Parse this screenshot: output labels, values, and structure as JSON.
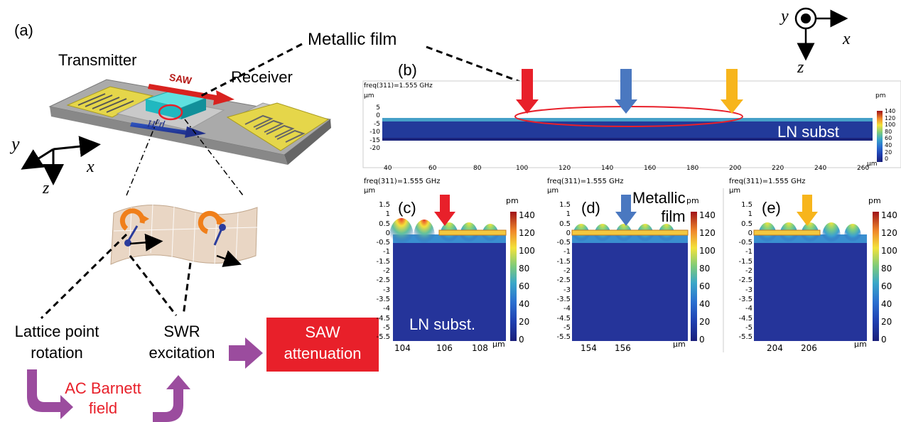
{
  "panel_a": {
    "label": "(a)",
    "transmitter": "Transmitter",
    "receiver": "Receiver",
    "saw_label": "SAW",
    "field_label": "μ₀H",
    "axis_y": "y",
    "axis_x": "x",
    "axis_z": "z"
  },
  "metallic_film_top": "Metallic film",
  "top_axes": {
    "y": "y",
    "x": "x",
    "z": "z"
  },
  "panel_b": {
    "label": "(b)",
    "freq": "freq(311)=1.555 GHz",
    "unit_axis": "μm",
    "unit_color": "pm",
    "y_ticks": [
      "5",
      "0",
      "-5",
      "-10",
      "-15",
      "-20"
    ],
    "x_ticks": [
      "40",
      "60",
      "80",
      "100",
      "120",
      "140",
      "160",
      "180",
      "200",
      "220",
      "240",
      "260"
    ],
    "x_unit": "μm",
    "colorbar_ticks": [
      "140",
      "120",
      "100",
      "80",
      "60",
      "40",
      "20",
      "0"
    ],
    "substrate": "LN subst"
  },
  "panel_c": {
    "label": "(c)",
    "freq": "freq(311)=1.555 GHz",
    "unit_axis": "μm",
    "unit_color": "pm",
    "substrate": "LN subst.",
    "x_ticks": [
      "104",
      "106",
      "108"
    ]
  },
  "panel_d": {
    "label": "(d)",
    "freq": "freq(311)=1.555 GHz",
    "unit_axis": "μm",
    "unit_color": "pm",
    "metallic_line1": "Metallic",
    "metallic_line2": "film",
    "x_ticks": [
      "154",
      "156"
    ]
  },
  "panel_e": {
    "label": "(e)",
    "freq": "freq(311)=1.555 GHz",
    "unit_axis": "μm",
    "unit_color": "pm",
    "x_ticks": [
      "204",
      "206"
    ]
  },
  "cd_y_ticks": [
    "1.5",
    "1",
    "0.5",
    "0",
    "-0.5",
    "-1",
    "-1.5",
    "-2",
    "-2.5",
    "-3",
    "-3.5",
    "-4",
    "-4.5",
    "-5",
    "-5.5"
  ],
  "cd_colorbar_ticks": [
    "140",
    "120",
    "100",
    "80",
    "60",
    "40",
    "20",
    "0"
  ],
  "x_unit_small": "μm",
  "flow": {
    "lattice_line1": "Lattice point",
    "lattice_line2": "rotation",
    "swr_line1": "SWR",
    "swr_line2": "excitation",
    "saw_att_line1": "SAW",
    "saw_att_line2": "attenuation",
    "barnett_line1": "AC Barnett",
    "barnett_line2": "field"
  },
  "colors": {
    "red_arrow": "#e8202a",
    "blue_arrow": "#4a78c0",
    "yellow_arrow": "#f7b51c",
    "purple": "#9b4c9e",
    "saw_box": "#e8202a",
    "barnett_text": "#e8202a"
  }
}
